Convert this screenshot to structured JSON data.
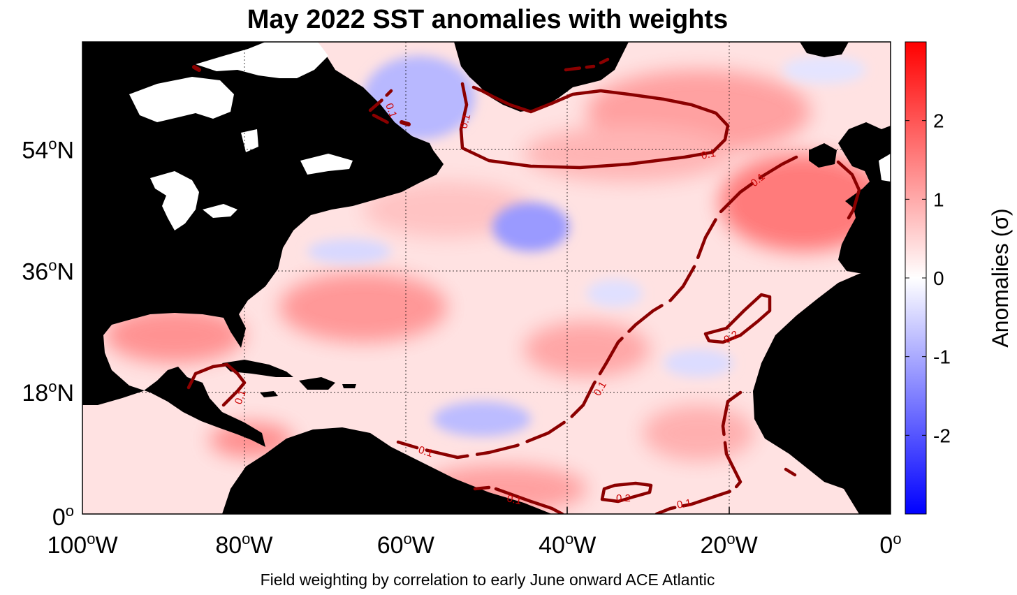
{
  "title": "May 2022 SST anomalies with weights",
  "subtitle": "Field weighting by correlation to early June onward ACE Atlantic",
  "map": {
    "longitude_range": [
      -100,
      0
    ],
    "latitude_range": [
      0,
      70
    ],
    "lon_ticks": [
      {
        "value": -100,
        "label": "100",
        "suffix": "W"
      },
      {
        "value": -80,
        "label": "80",
        "suffix": "W"
      },
      {
        "value": -60,
        "label": "60",
        "suffix": "W"
      },
      {
        "value": -40,
        "label": "40",
        "suffix": "W"
      },
      {
        "value": -20,
        "label": "20",
        "suffix": "W"
      },
      {
        "value": 0,
        "label": "0",
        "suffix": ""
      }
    ],
    "lat_ticks": [
      {
        "value": 0,
        "label": "0",
        "suffix": ""
      },
      {
        "value": 18,
        "label": "18",
        "suffix": "N"
      },
      {
        "value": 36,
        "label": "36",
        "suffix": "N"
      },
      {
        "value": 54,
        "label": "54",
        "suffix": "N"
      }
    ],
    "degree_symbol": "o",
    "land_color": "#000000",
    "sea_warm_color": "#ff8080",
    "sea_cool_color": "#9a9aff"
  },
  "contours": [
    {
      "level": 0.1,
      "label": "0.1"
    },
    {
      "level": 0.2,
      "label": "0.2"
    }
  ],
  "contour_color": "#8b0000",
  "colorbar": {
    "label": "Anomalies (σ)",
    "min": -3,
    "max": 3,
    "ticks": [
      -2,
      -1,
      0,
      1,
      2
    ],
    "tick_labels": [
      "-2",
      "-1",
      "0",
      "1",
      "2"
    ],
    "low_color": "#0000ff",
    "mid_color": "#ffffff",
    "high_color": "#ff0000"
  }
}
